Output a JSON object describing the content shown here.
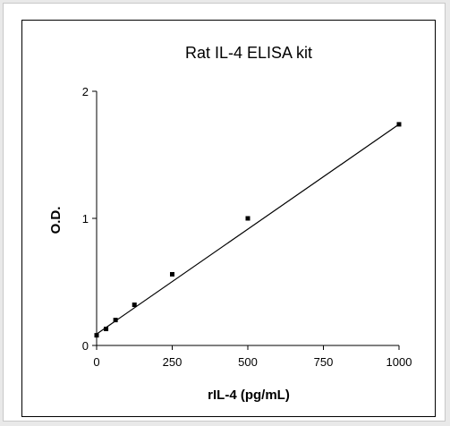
{
  "chart_data": {
    "type": "scatter",
    "title": "Rat IL-4 ELISA kit",
    "xlabel": "rIL-4 (pg/mL)",
    "ylabel": "O.D.",
    "xlim": [
      0,
      1000
    ],
    "ylim": [
      0,
      2
    ],
    "x_ticks": [
      0,
      250,
      500,
      750,
      1000
    ],
    "x_tick_labels": [
      "0",
      "250",
      "500",
      "750",
      "1000"
    ],
    "y_ticks": [
      0,
      1,
      2
    ],
    "y_tick_labels": [
      "0",
      "1",
      "2"
    ],
    "grid": false,
    "legend": "none",
    "series": [
      {
        "points": [
          {
            "x": 0,
            "y": 0.08
          },
          {
            "x": 31.25,
            "y": 0.13
          },
          {
            "x": 62.5,
            "y": 0.2
          },
          {
            "x": 125,
            "y": 0.32
          },
          {
            "x": 250,
            "y": 0.56
          },
          {
            "x": 500,
            "y": 1.0
          },
          {
            "x": 1000,
            "y": 1.74
          }
        ]
      }
    ],
    "fit_line": {
      "x": [
        0,
        1000
      ],
      "y": [
        0.09,
        1.74
      ]
    }
  }
}
